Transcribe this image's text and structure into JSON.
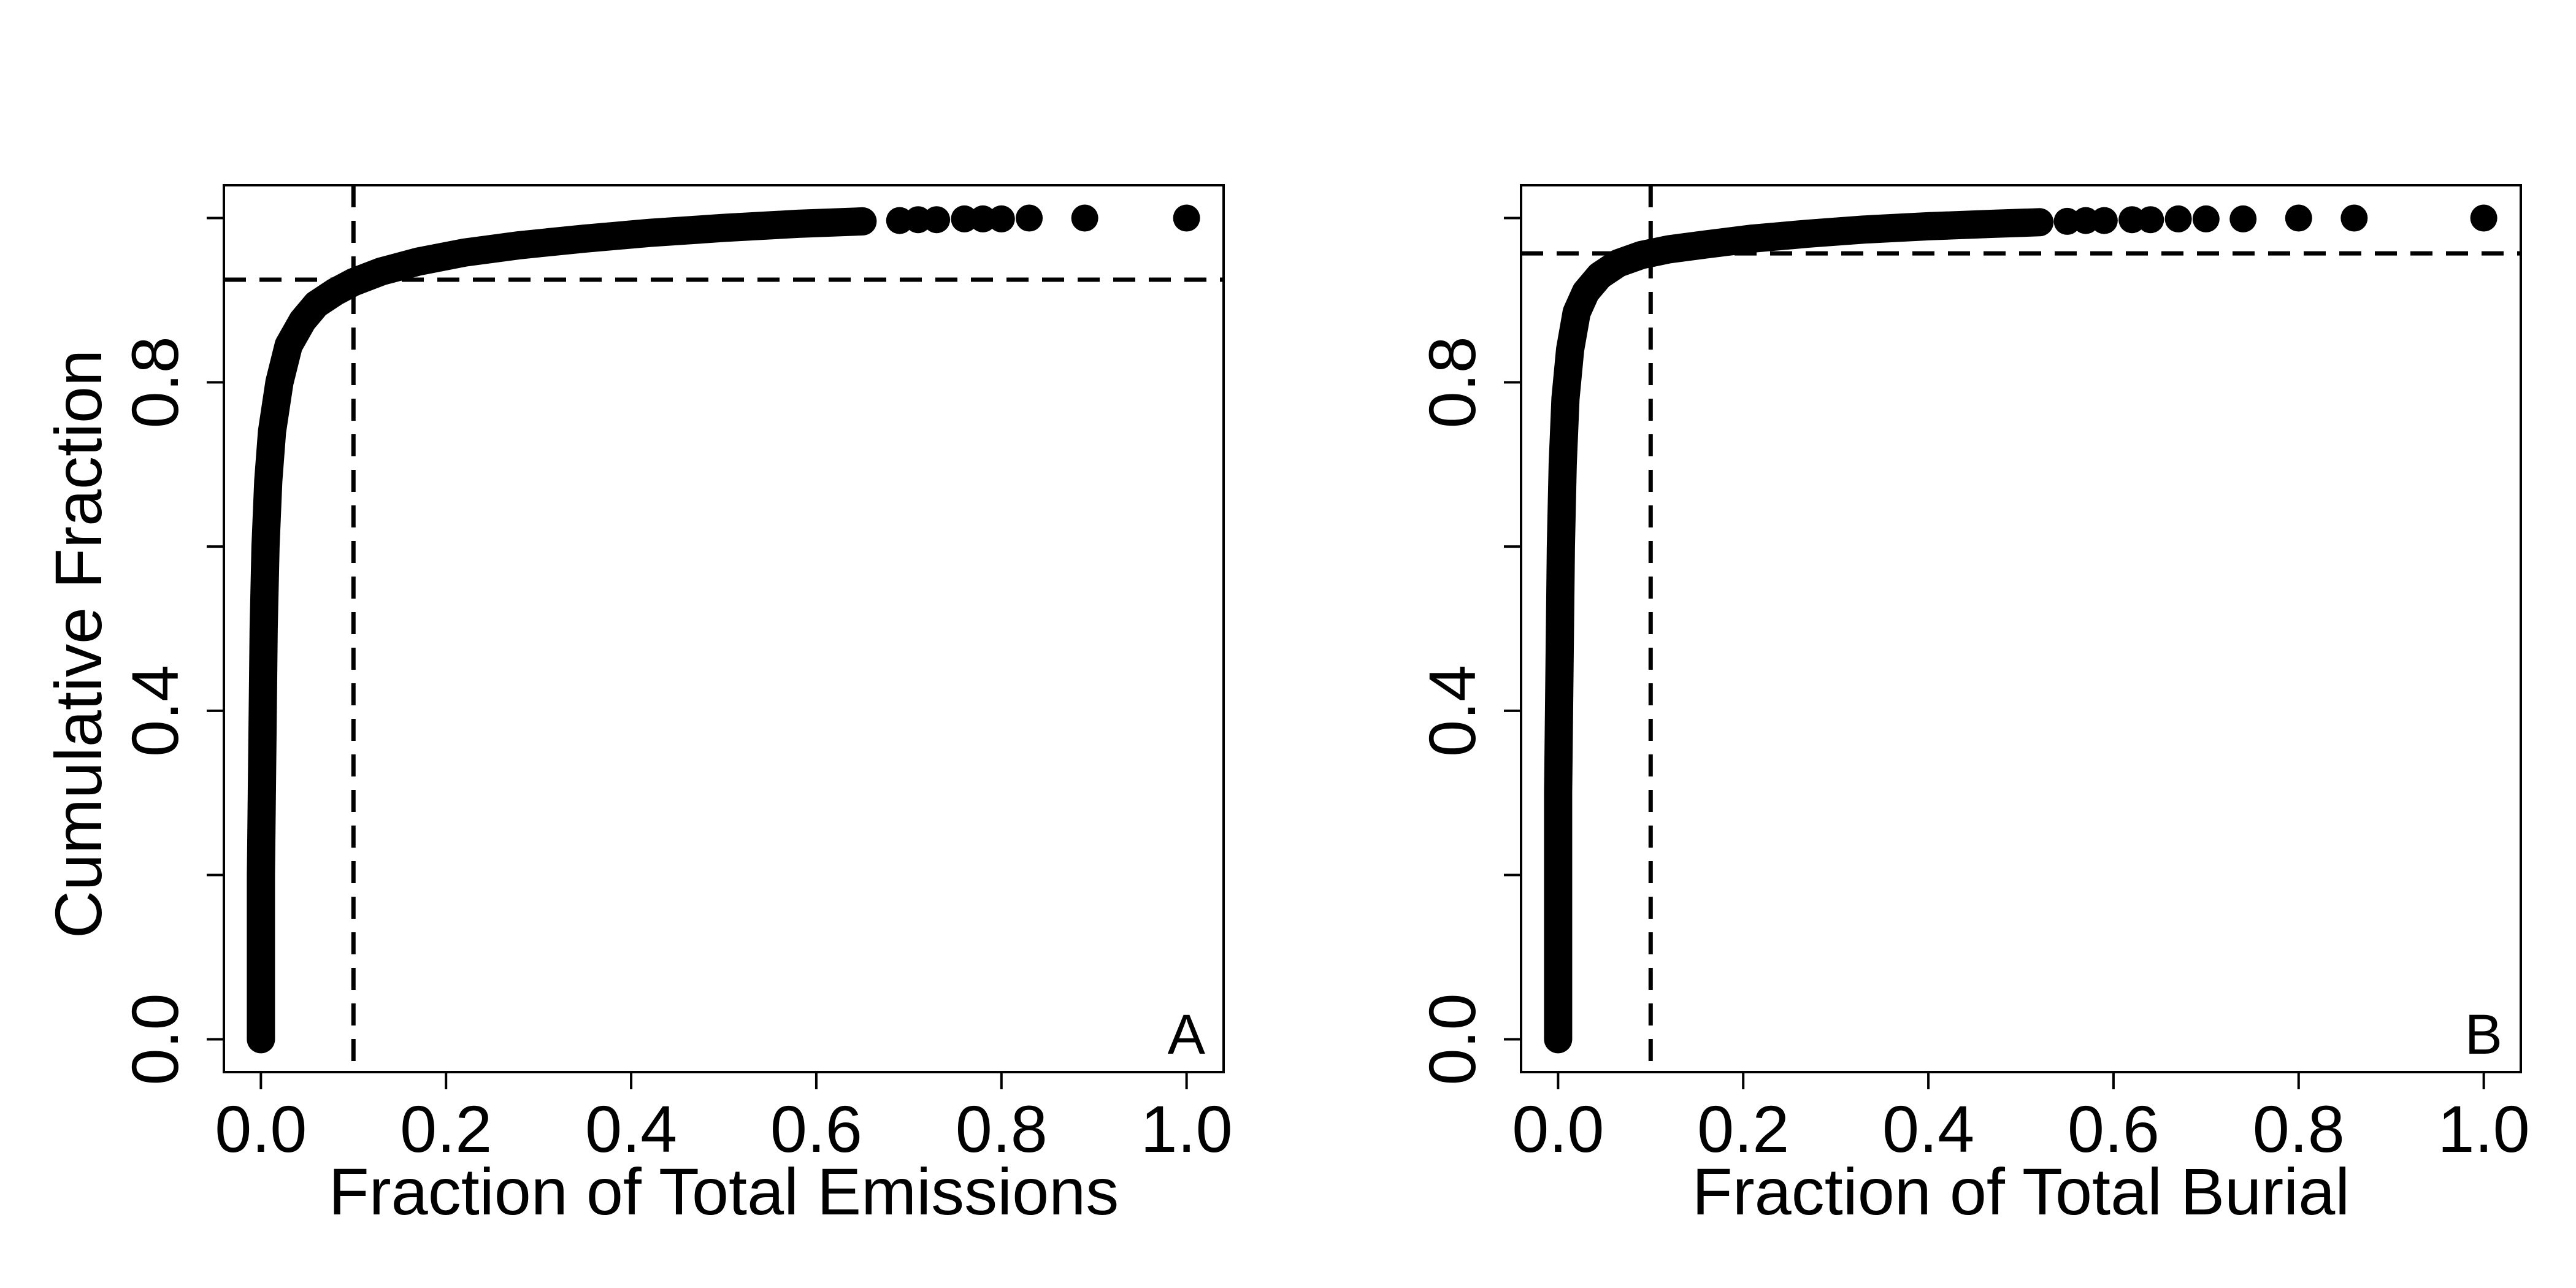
{
  "chart_data": [
    {
      "type": "scatter",
      "panel_label": "A",
      "xlabel": "Fraction of Total Emissions",
      "ylabel": "Cumulative Fraction",
      "xlim": [
        -0.04,
        1.04
      ],
      "ylim": [
        -0.04,
        1.04
      ],
      "x_ticks": [
        0.0,
        0.2,
        0.4,
        0.6,
        0.8,
        1.0
      ],
      "x_tick_labels": [
        "0.0",
        "0.2",
        "0.4",
        "0.6",
        "0.8",
        "1.0"
      ],
      "y_ticks": [
        0.0,
        0.2,
        0.4,
        0.6,
        0.8,
        1.0
      ],
      "y_tick_labels": [
        "0.0",
        "",
        "0.4",
        "",
        "0.8",
        ""
      ],
      "reference_lines": {
        "vertical_x": 0.1,
        "horizontal_y": 0.925,
        "style": "dashed"
      },
      "curve_points": [
        [
          0.0,
          0.0
        ],
        [
          0.0,
          0.1
        ],
        [
          0.0,
          0.2
        ],
        [
          0.001,
          0.3
        ],
        [
          0.002,
          0.4
        ],
        [
          0.003,
          0.5
        ],
        [
          0.005,
          0.6
        ],
        [
          0.008,
          0.68
        ],
        [
          0.012,
          0.74
        ],
        [
          0.02,
          0.8
        ],
        [
          0.03,
          0.845
        ],
        [
          0.045,
          0.875
        ],
        [
          0.06,
          0.895
        ],
        [
          0.08,
          0.91
        ],
        [
          0.1,
          0.922
        ],
        [
          0.13,
          0.935
        ],
        [
          0.17,
          0.947
        ],
        [
          0.22,
          0.958
        ],
        [
          0.28,
          0.967
        ],
        [
          0.35,
          0.975
        ],
        [
          0.42,
          0.982
        ],
        [
          0.5,
          0.988
        ],
        [
          0.58,
          0.993
        ],
        [
          0.65,
          0.996
        ]
      ],
      "outlier_points": [
        [
          0.69,
          0.997
        ],
        [
          0.71,
          0.998
        ],
        [
          0.73,
          0.998
        ],
        [
          0.76,
          0.999
        ],
        [
          0.78,
          0.999
        ],
        [
          0.8,
          0.999
        ],
        [
          0.83,
          1.0
        ],
        [
          0.89,
          1.0
        ],
        [
          1.0,
          1.0
        ]
      ]
    },
    {
      "type": "scatter",
      "panel_label": "B",
      "xlabel": "Fraction of Total Burial",
      "ylabel": "",
      "xlim": [
        -0.04,
        1.04
      ],
      "ylim": [
        -0.04,
        1.04
      ],
      "x_ticks": [
        0.0,
        0.2,
        0.4,
        0.6,
        0.8,
        1.0
      ],
      "x_tick_labels": [
        "0.0",
        "0.2",
        "0.4",
        "0.6",
        "0.8",
        "1.0"
      ],
      "y_ticks": [
        0.0,
        0.2,
        0.4,
        0.6,
        0.8,
        1.0
      ],
      "y_tick_labels": [
        "0.0",
        "",
        "0.4",
        "",
        "0.8",
        ""
      ],
      "reference_lines": {
        "vertical_x": 0.1,
        "horizontal_y": 0.957,
        "style": "dashed"
      },
      "curve_points": [
        [
          0.0,
          0.0
        ],
        [
          0.0,
          0.1
        ],
        [
          0.0,
          0.2
        ],
        [
          0.0,
          0.3
        ],
        [
          0.001,
          0.4
        ],
        [
          0.002,
          0.5
        ],
        [
          0.003,
          0.6
        ],
        [
          0.005,
          0.7
        ],
        [
          0.008,
          0.78
        ],
        [
          0.013,
          0.84
        ],
        [
          0.02,
          0.885
        ],
        [
          0.03,
          0.91
        ],
        [
          0.045,
          0.93
        ],
        [
          0.065,
          0.945
        ],
        [
          0.09,
          0.955
        ],
        [
          0.12,
          0.962
        ],
        [
          0.16,
          0.968
        ],
        [
          0.21,
          0.975
        ],
        [
          0.27,
          0.981
        ],
        [
          0.33,
          0.986
        ],
        [
          0.4,
          0.99
        ],
        [
          0.47,
          0.993
        ],
        [
          0.52,
          0.995
        ]
      ],
      "outlier_points": [
        [
          0.55,
          0.996
        ],
        [
          0.57,
          0.997
        ],
        [
          0.59,
          0.997
        ],
        [
          0.62,
          0.998
        ],
        [
          0.64,
          0.998
        ],
        [
          0.67,
          0.999
        ],
        [
          0.7,
          0.999
        ],
        [
          0.74,
          0.999
        ],
        [
          0.8,
          1.0
        ],
        [
          0.86,
          1.0
        ],
        [
          1.0,
          1.0
        ]
      ]
    }
  ]
}
